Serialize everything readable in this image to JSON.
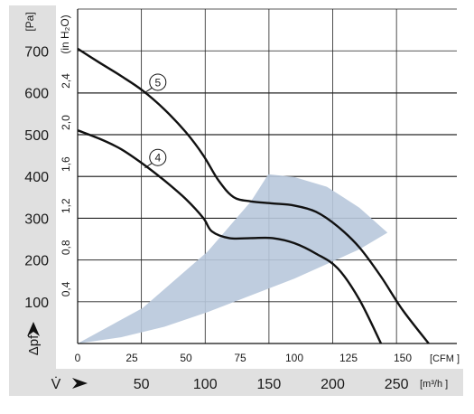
{
  "chart_data": {
    "type": "line",
    "title": "",
    "x_cfm": {
      "ticks": [
        0,
        25,
        50,
        75,
        100,
        125,
        150
      ],
      "unit": "[CFM ]",
      "range": [
        0,
        175
      ]
    },
    "x_m3h": {
      "ticks": [
        50,
        100,
        150,
        200,
        250
      ],
      "unit": "[m³/h ]",
      "symbol": "V̇"
    },
    "y_pa": {
      "ticks": [
        100,
        200,
        300,
        400,
        500,
        600,
        700
      ],
      "unit": "[Pa]",
      "symbol": "Δpf",
      "range": [
        0,
        800
      ]
    },
    "y_inh2o": {
      "ticks": [
        "0,4",
        "0,8",
        "1,2",
        "1,6",
        "2,0",
        "2,4"
      ],
      "values": [
        0.4,
        0.8,
        1.2,
        1.6,
        2.0,
        2.4
      ],
      "unit": "(in H₂O)"
    },
    "grid": true,
    "series": [
      {
        "name": "5",
        "x": [
          0,
          10,
          20,
          30,
          40,
          50,
          58,
          65,
          72,
          80,
          90,
          100,
          110,
          120,
          130,
          140,
          150,
          162
        ],
        "y": [
          705,
          672,
          640,
          605,
          560,
          505,
          450,
          390,
          350,
          340,
          335,
          330,
          315,
          280,
          230,
          160,
          80,
          0
        ]
      },
      {
        "name": "4",
        "x": [
          0,
          10,
          20,
          30,
          40,
          50,
          58,
          62,
          70,
          80,
          90,
          100,
          110,
          120,
          130,
          140
        ],
        "y": [
          510,
          490,
          465,
          430,
          390,
          345,
          300,
          268,
          252,
          252,
          252,
          240,
          215,
          180,
          105,
          0
        ]
      }
    ],
    "shaded_region": {
      "upper": {
        "x": [
          0,
          30,
          60,
          80,
          88,
          100,
          115,
          130,
          143
        ],
        "y": [
          0,
          85,
          220,
          340,
          405,
          398,
          375,
          325,
          265
        ]
      },
      "lower": {
        "x": [
          143,
          130,
          115,
          100,
          80,
          60,
          40,
          20,
          0
        ],
        "y": [
          265,
          225,
          190,
          155,
          115,
          75,
          40,
          15,
          0
        ]
      }
    },
    "curve_labels": [
      "5",
      "4"
    ],
    "shade_color": "#b8c8dc",
    "line_color": "#111111",
    "panel_color": "#e0e0e0"
  }
}
